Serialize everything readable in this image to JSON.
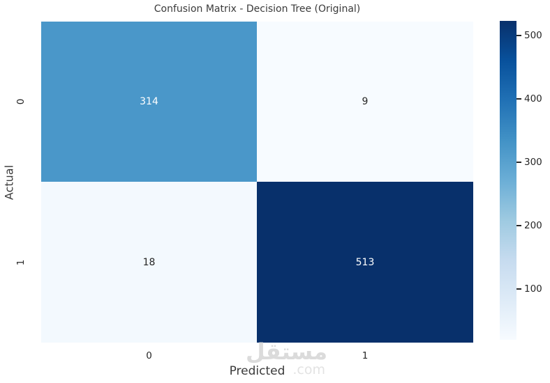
{
  "title": "Confusion Matrix - Decision Tree (Original)",
  "chart_data": {
    "type": "heatmap",
    "title": "Confusion Matrix - Decision Tree (Original)",
    "xlabel": "Predicted",
    "ylabel": "Actual",
    "x_ticks": [
      "0",
      "1"
    ],
    "y_ticks": [
      "0",
      "1"
    ],
    "matrix": [
      [
        314,
        9
      ],
      [
        18,
        513
      ]
    ],
    "colormap": "Blues",
    "vmin": 9,
    "vmax": 513,
    "grid": false,
    "legend_position": "right-colorbar",
    "cells": [
      {
        "value": "314",
        "bg": "#4a97c9",
        "fg": "#ffffff"
      },
      {
        "value": "9",
        "bg": "#f7fbff",
        "fg": "#262626"
      },
      {
        "value": "18",
        "bg": "#f3f9fe",
        "fg": "#262626"
      },
      {
        "value": "513",
        "bg": "#08306b",
        "fg": "#ffffff"
      }
    ],
    "colorbar": {
      "tick_labels": [
        "500",
        "400",
        "300",
        "200",
        "100"
      ]
    }
  },
  "watermark": {
    "name": "مستقل",
    "suffix": ".com"
  }
}
